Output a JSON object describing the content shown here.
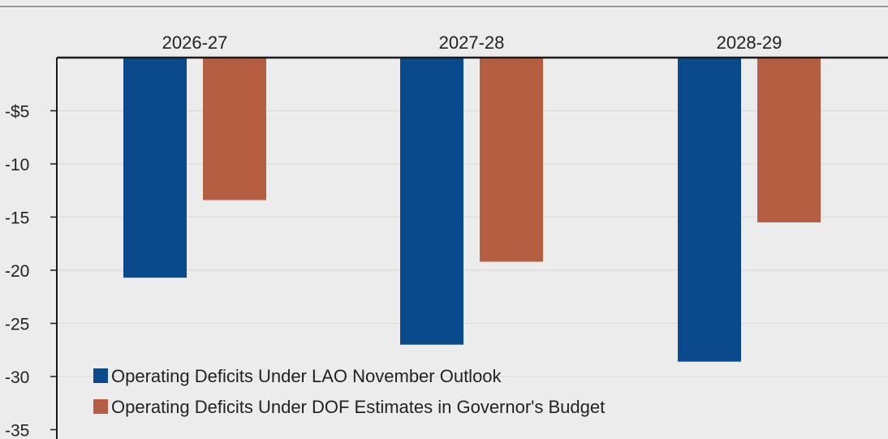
{
  "chart_data": {
    "type": "bar",
    "title": "",
    "xlabel": "",
    "ylabel": "",
    "categories": [
      "2026-27",
      "2027-28",
      "2028-29"
    ],
    "series": [
      {
        "name": "Operating Deficits Under LAO November Outlook",
        "color": "#0a4a8c",
        "values": [
          -20.7,
          -27.0,
          -28.6
        ]
      },
      {
        "name": "Operating Deficits Under DOF Estimates in Governor's Budget",
        "color": "#b55e42",
        "values": [
          -13.4,
          -19.2,
          -15.5
        ]
      }
    ],
    "ylim": [
      -35,
      0
    ],
    "yticks": [
      {
        "value": -5,
        "label": "-$5"
      },
      {
        "value": -10,
        "label": "-10"
      },
      {
        "value": -15,
        "label": "-15"
      },
      {
        "value": -20,
        "label": "-20"
      },
      {
        "value": -25,
        "label": "-25"
      },
      {
        "value": -30,
        "label": "-30"
      },
      {
        "value": -35,
        "label": "-35"
      }
    ],
    "grid": true,
    "category_labels_position": "top",
    "legend_placement": "bottom-left",
    "colors": {
      "background": "#ececec",
      "gridline": "#d9d9d9",
      "axis": "#1a1a1a",
      "top_rule": "#9a9a9a"
    }
  }
}
